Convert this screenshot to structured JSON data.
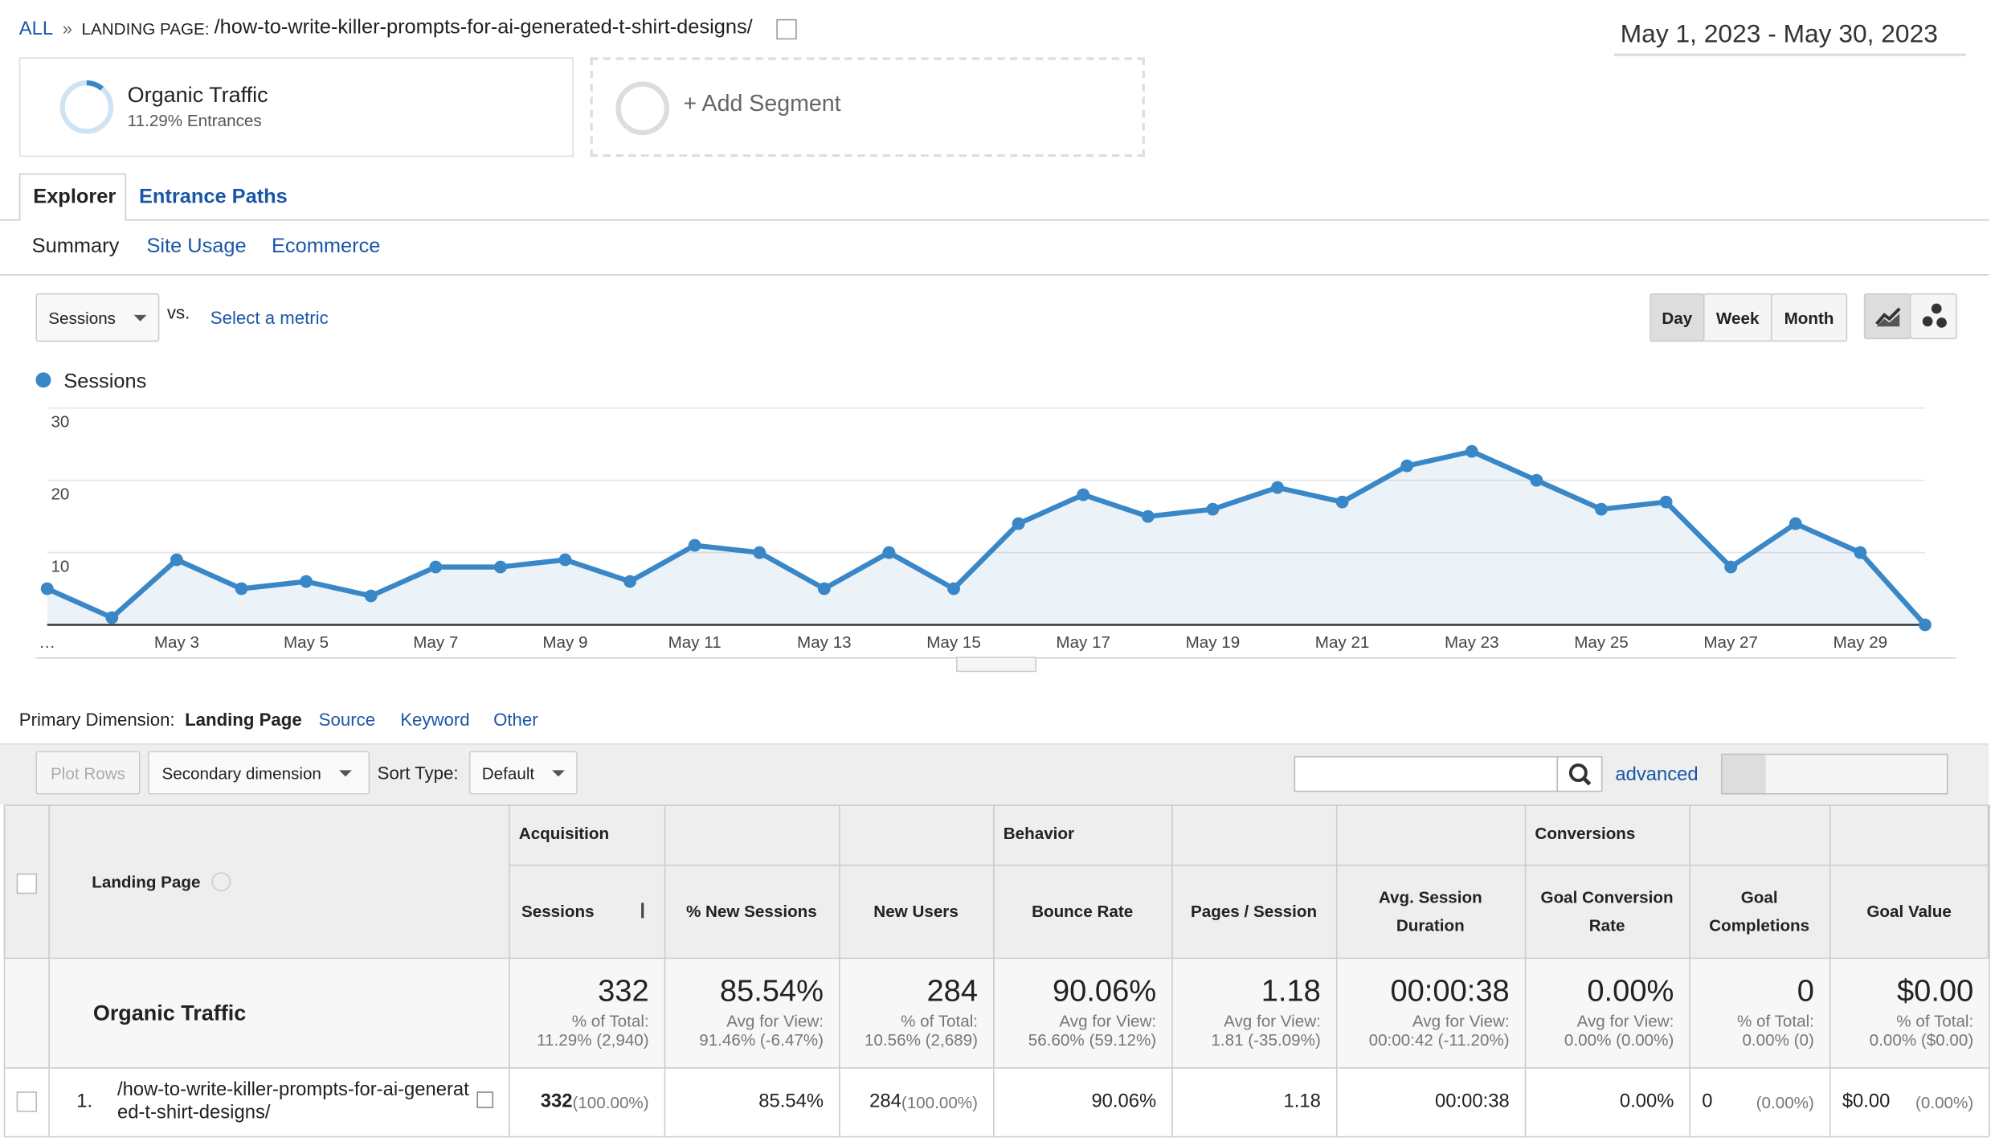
{
  "breadcrumb": {
    "all": "ALL",
    "sep": "»",
    "label": "LANDING PAGE:",
    "path": "/how-to-write-killer-prompts-for-ai-generated-t-shirt-designs/"
  },
  "date_range": "May 1, 2023 - May 30, 2023",
  "segments": [
    {
      "name": "Organic Traffic",
      "detail": "11.29% Entrances"
    },
    {
      "name": "+ Add Segment"
    }
  ],
  "tabs": [
    "Explorer",
    "Entrance Paths"
  ],
  "subtabs": [
    "Summary",
    "Site Usage",
    "Ecommerce"
  ],
  "metric_select": "Sessions",
  "vs": "vs.",
  "select_metric": "Select a metric",
  "granularity": [
    "Day",
    "Week",
    "Month"
  ],
  "chart_data": {
    "type": "line",
    "area": true,
    "grid": true,
    "categories": [
      "…",
      null,
      "May 3",
      null,
      "May 5",
      null,
      "May 7",
      null,
      "May 9",
      null,
      "May 11",
      null,
      "May 13",
      null,
      "May 15",
      null,
      "May 17",
      null,
      "May 19",
      null,
      "May 21",
      null,
      "May 23",
      null,
      "May 25",
      null,
      "May 27",
      null,
      "May 29",
      null
    ],
    "series": [
      {
        "name": "Sessions",
        "color": "#3a87c8",
        "values": [
          5,
          1,
          9,
          5,
          6,
          4,
          8,
          8,
          9,
          6,
          11,
          10,
          5,
          10,
          5,
          14,
          18,
          15,
          16,
          19,
          17,
          22,
          24,
          20,
          16,
          17,
          8,
          14,
          10,
          0
        ]
      }
    ],
    "ylim": [
      0,
      30
    ],
    "yticks": [
      10,
      20,
      30
    ]
  },
  "primary_dimension": {
    "label": "Primary Dimension:",
    "options": [
      "Landing Page",
      "Source",
      "Keyword",
      "Other"
    ]
  },
  "toolbar": {
    "plot_rows": "Plot Rows",
    "secondary": "Secondary dimension",
    "sort_label": "Sort Type:",
    "sort": "Default",
    "advanced": "advanced"
  },
  "table": {
    "groups": [
      "Acquisition",
      "Behavior",
      "Conversions"
    ],
    "first_header": "Landing Page",
    "headers": [
      "Sessions",
      "% New Sessions",
      "New Users",
      "Bounce Rate",
      "Pages / Session",
      "Avg. Session Duration",
      "Goal Conversion Rate",
      "Goal Completions",
      "Goal Value"
    ],
    "totals": {
      "label": "Organic Traffic",
      "cells": [
        {
          "main": "332",
          "sub1": "% of Total:",
          "sub2": "11.29% (2,940)"
        },
        {
          "main": "85.54%",
          "sub1": "Avg for View:",
          "sub2": "91.46% (-6.47%)"
        },
        {
          "main": "284",
          "sub1": "% of Total:",
          "sub2": "10.56% (2,689)"
        },
        {
          "main": "90.06%",
          "sub1": "Avg for View:",
          "sub2": "56.60% (59.12%)"
        },
        {
          "main": "1.18",
          "sub1": "Avg for View:",
          "sub2": "1.81 (-35.09%)"
        },
        {
          "main": "00:00:38",
          "sub1": "Avg for View:",
          "sub2": "00:00:42 (-11.20%)"
        },
        {
          "main": "0.00%",
          "sub1": "Avg for View:",
          "sub2": "0.00% (0.00%)"
        },
        {
          "main": "0",
          "sub1": "% of Total:",
          "sub2": "0.00% (0)"
        },
        {
          "main": "$0.00",
          "sub1": "% of Total:",
          "sub2": "0.00% ($0.00)"
        }
      ]
    },
    "rows": [
      {
        "index": "1.",
        "page": "/how-to-write-killer-prompts-for-ai-generated-t-shirt-designs/",
        "cells": [
          {
            "main": "332",
            "pct": "(100.00%)"
          },
          {
            "main": "85.54%"
          },
          {
            "main": "284",
            "pct": "(100.00%)"
          },
          {
            "main": "90.06%"
          },
          {
            "main": "1.18"
          },
          {
            "main": "00:00:38"
          },
          {
            "main": "0.00%"
          },
          {
            "main": "0",
            "pct": "(0.00%)"
          },
          {
            "main": "$0.00",
            "pct": "(0.00%)"
          }
        ]
      }
    ]
  }
}
